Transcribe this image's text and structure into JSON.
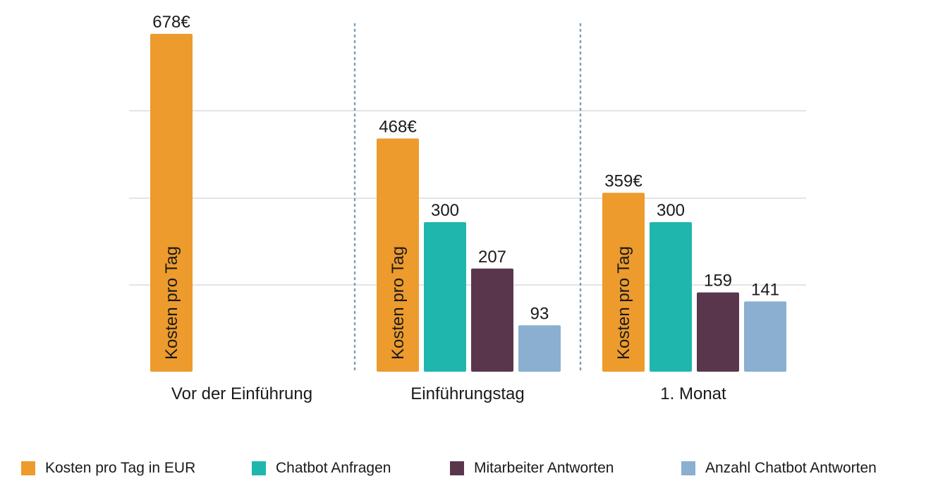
{
  "chart_data": {
    "type": "bar",
    "categories": [
      "Vor der Einführung",
      "Einführungstag",
      "1. Monat"
    ],
    "series": [
      {
        "name": "Kosten pro Tag in EUR",
        "color": "#ED9B2C",
        "values": [
          678,
          468,
          359
        ],
        "labels": [
          "678€",
          "468€",
          "359€"
        ],
        "inner_label": "Kosten pro Tag"
      },
      {
        "name": "Chatbot Anfragen",
        "color": "#1FB6AE",
        "values": [
          null,
          300,
          300
        ],
        "labels": [
          "",
          "300",
          "300"
        ]
      },
      {
        "name": "Mitarbeiter Antworten",
        "color": "#5A364D",
        "values": [
          null,
          207,
          159
        ],
        "labels": [
          "",
          "207",
          "159"
        ]
      },
      {
        "name": "Anzahl Chatbot Antworten",
        "color": "#8AAFD0",
        "values": [
          null,
          93,
          141
        ],
        "labels": [
          "",
          "93",
          "141"
        ]
      }
    ],
    "grid": true,
    "legend_position": "bottom",
    "separators": "dotted-between-groups",
    "title": "",
    "xlabel": "",
    "ylabel": ""
  }
}
